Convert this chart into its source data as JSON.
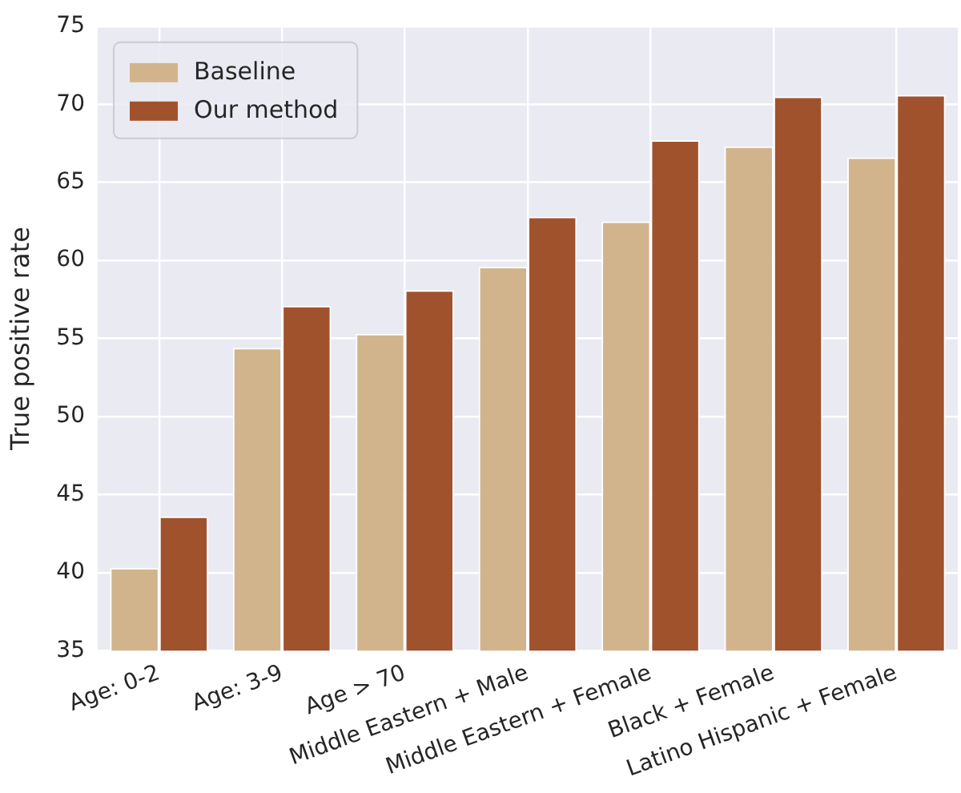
{
  "chart_data": {
    "type": "bar",
    "ylabel": "True positive rate",
    "categories": [
      "Age: 0-2",
      "Age: 3-9",
      "Age > 70",
      "Middle Eastern + Male",
      "Middle Eastern + Female",
      "Black + Female",
      "Latino Hispanic + Female"
    ],
    "series": [
      {
        "name": "Baseline",
        "color": "#d2b48c",
        "values": [
          40.3,
          54.4,
          55.3,
          59.6,
          62.5,
          67.3,
          66.6
        ]
      },
      {
        "name": "Our method",
        "color": "#a0522d",
        "values": [
          43.6,
          57.1,
          58.1,
          62.8,
          67.7,
          70.5,
          70.6
        ]
      }
    ],
    "ylim": [
      35,
      75
    ],
    "yticks": [
      35,
      40,
      45,
      50,
      55,
      60,
      65,
      70,
      75
    ],
    "grid": true,
    "legend": "top left"
  }
}
